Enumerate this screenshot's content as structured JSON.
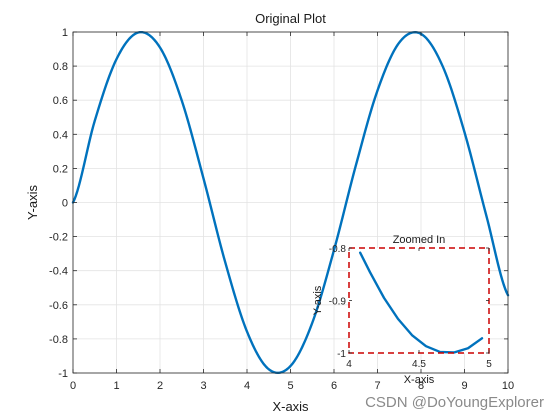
{
  "chart_data": [
    {
      "type": "line",
      "title": "Original Plot",
      "xlabel": "X-axis",
      "ylabel": "Y-axis",
      "xlim": [
        0,
        10
      ],
      "ylim": [
        -1,
        1
      ],
      "xticks": [
        0,
        1,
        2,
        3,
        4,
        5,
        6,
        7,
        8,
        9,
        10
      ],
      "yticks": [
        -1,
        -0.8,
        -0.6,
        -0.4,
        -0.2,
        0,
        0.2,
        0.4,
        0.6,
        0.8,
        1
      ],
      "xtick_labels": [
        "0",
        "1",
        "2",
        "3",
        "4",
        "5",
        "6",
        "7",
        "8",
        "9",
        "10"
      ],
      "ytick_labels": [
        "-1",
        "-0.8",
        "-0.6",
        "-0.4",
        "-0.2",
        "0",
        "0.2",
        "0.4",
        "0.6",
        "0.8",
        "1"
      ],
      "grid": true,
      "series": [
        {
          "color": "#0072BD",
          "x": [
            0,
            0.5,
            1,
            1.5,
            2,
            2.5,
            3,
            3.5,
            4,
            4.5,
            5,
            5.5,
            6,
            6.5,
            7,
            7.5,
            8,
            8.5,
            9,
            9.5,
            10
          ],
          "y": [
            0,
            0.479,
            0.841,
            0.997,
            0.909,
            0.598,
            0.141,
            -0.351,
            -0.757,
            -0.978,
            -0.959,
            -0.706,
            -0.279,
            0.215,
            0.657,
            0.938,
            0.989,
            0.798,
            0.412,
            -0.075,
            -0.544
          ]
        }
      ]
    },
    {
      "type": "line",
      "title": "Zoomed In",
      "xlabel": "X-axis",
      "ylabel": "Y-axis",
      "xlim": [
        4,
        5
      ],
      "ylim": [
        -1,
        -0.8
      ],
      "xticks": [
        4,
        4.5,
        5
      ],
      "yticks": [
        -1,
        -0.9,
        -0.8
      ],
      "xtick_labels": [
        "4",
        "4.5",
        "5"
      ],
      "ytick_labels": [
        "-1",
        "-0.9",
        "-0.8"
      ],
      "grid": false,
      "border_color": "#CC0000",
      "series": [
        {
          "color": "#0072BD",
          "x": [
            4.08,
            4.15,
            4.25,
            4.35,
            4.45,
            4.55,
            4.65,
            4.75,
            4.85,
            4.95
          ],
          "y": [
            -0.809,
            -0.846,
            -0.895,
            -0.935,
            -0.966,
            -0.987,
            -0.998,
            -0.999,
            -0.991,
            -0.972
          ]
        }
      ]
    }
  ],
  "watermark": "CSDN @DoYoungExplorer"
}
